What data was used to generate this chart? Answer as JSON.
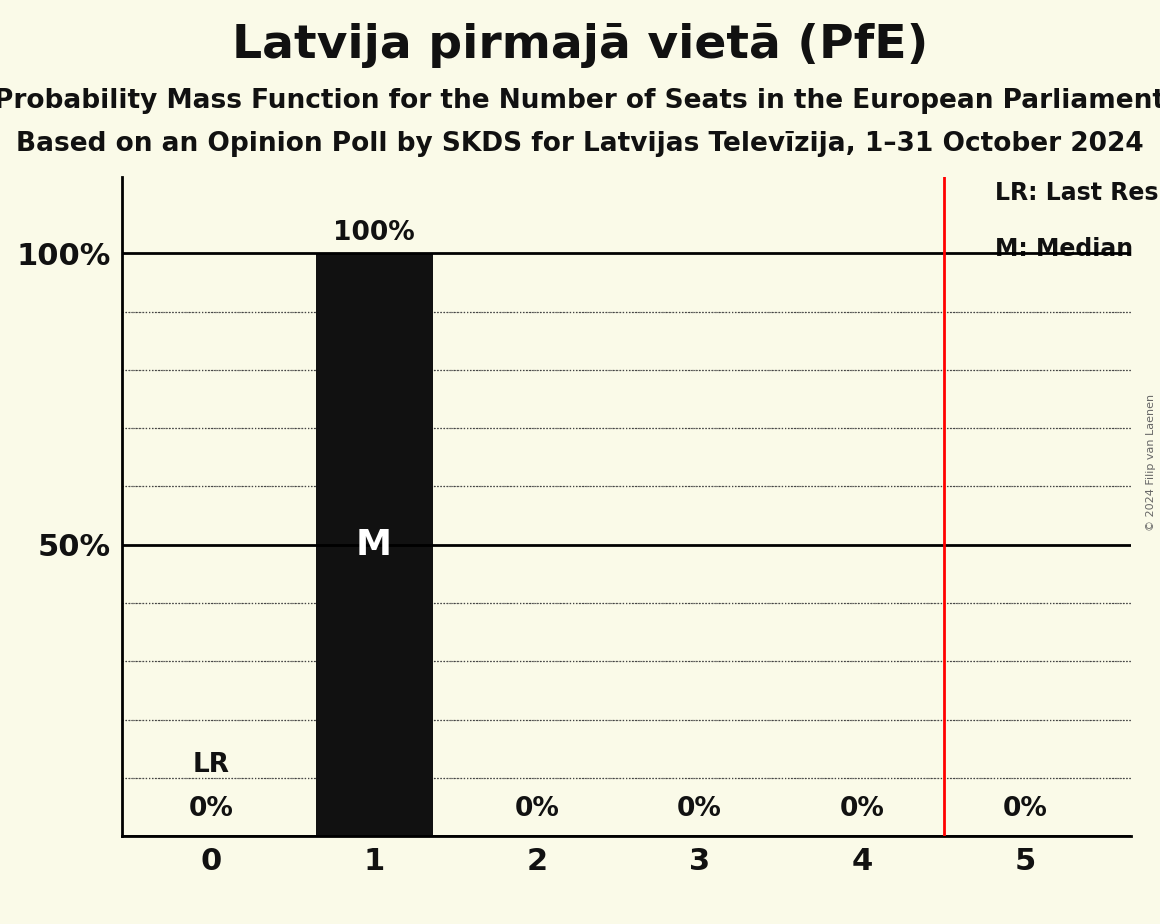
{
  "title": "Latvija pirmajā vietā (PfE)",
  "subtitle1": "Probability Mass Function for the Number of Seats in the European Parliament",
  "subtitle2": "Based on an Opinion Poll by SKDS for Latvijas Televīzija, 1–31 October 2024",
  "copyright": "© 2024 Filip van Laenen",
  "seats": [
    0,
    1,
    2,
    3,
    4,
    5
  ],
  "probabilities": [
    0.0,
    1.0,
    0.0,
    0.0,
    0.0,
    0.0
  ],
  "bar_color": "#111111",
  "last_result": 4.5,
  "median": 1,
  "lr_line_color": "#ff0000",
  "background_color": "#fafae8",
  "bar_label_color": "#ffffff",
  "bar_label_fontsize": 26,
  "title_fontsize": 34,
  "subtitle_fontsize": 19,
  "tick_label_fontsize": 22,
  "legend_fontsize": 17,
  "pct_label_fontsize": 19,
  "lr_label_fontsize": 19,
  "copyright_fontsize": 8,
  "grid_color": "#444444",
  "text_color": "#111111"
}
